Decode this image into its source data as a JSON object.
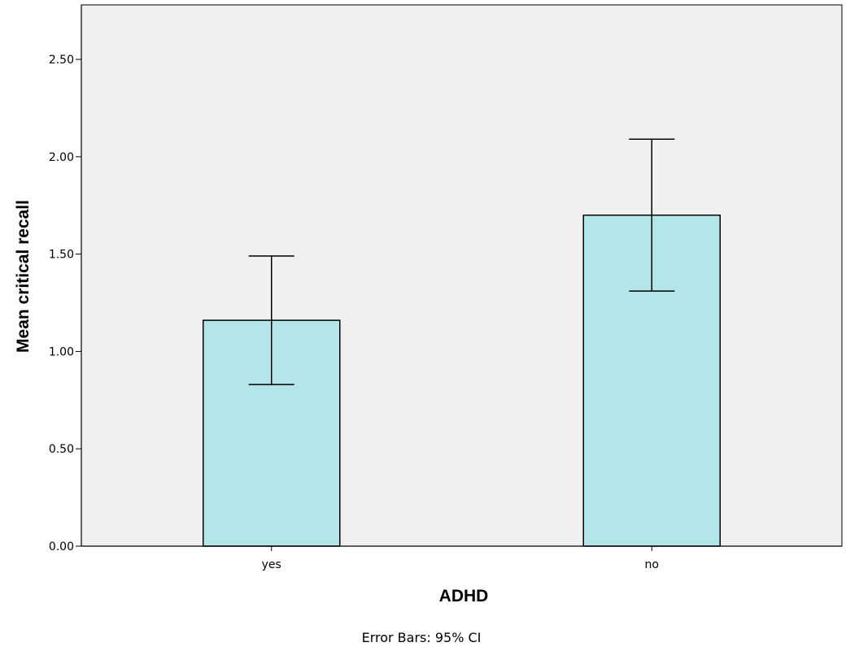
{
  "chart_data": {
    "type": "bar",
    "title": "",
    "xlabel": "ADHD",
    "ylabel": "Mean critical recall",
    "categories": [
      "yes",
      "no"
    ],
    "values": [
      1.16,
      1.7
    ],
    "error_low": [
      0.83,
      1.31
    ],
    "error_high": [
      1.49,
      2.09
    ],
    "ylim": [
      0,
      2.78
    ],
    "yticks": [
      0.0,
      0.5,
      1.0,
      1.5,
      2.0,
      2.5
    ],
    "ytick_labels": [
      "0.00",
      "0.50",
      "1.00",
      "1.50",
      "2.00",
      "2.50"
    ],
    "grid": false,
    "legend": "none",
    "footnote": "Error Bars: 95% CI",
    "colors": {
      "bar_fill": "#b3e6e8",
      "plot_background": "#f0f0f0",
      "axis": "#000000"
    }
  }
}
